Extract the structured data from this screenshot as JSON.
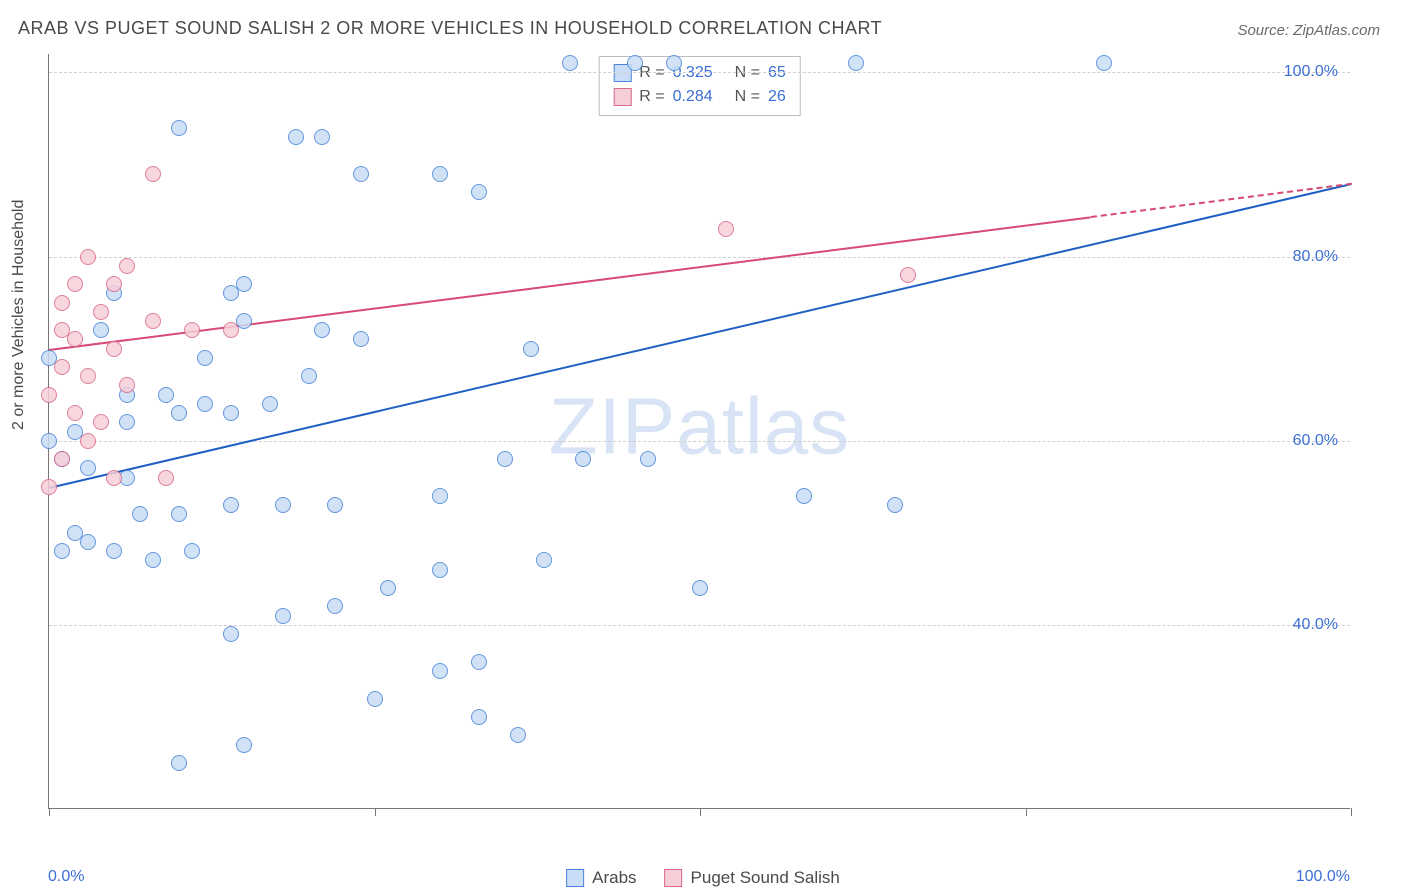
{
  "title": "ARAB VS PUGET SOUND SALISH 2 OR MORE VEHICLES IN HOUSEHOLD CORRELATION CHART",
  "source": "Source: ZipAtlas.com",
  "watermark": {
    "bold": "ZIP",
    "rest": "atlas"
  },
  "ylabel": "2 or more Vehicles in Household",
  "chart": {
    "type": "scatter",
    "xlim": [
      0,
      100
    ],
    "ylim": [
      20,
      102
    ],
    "background_color": "#ffffff",
    "grid_color": "#d0d0d0",
    "yticks": [
      40,
      60,
      80,
      100
    ],
    "ytick_labels": [
      "40.0%",
      "60.0%",
      "80.0%",
      "100.0%"
    ],
    "xticks": [
      0,
      25,
      50,
      75,
      100
    ],
    "x_end_labels": {
      "min": "0.0%",
      "max": "100.0%"
    },
    "marker_radius": 8,
    "marker_border_width": 1.2,
    "series": [
      {
        "name": "Arabs",
        "fill": "#c9ddf6",
        "stroke": "#4a86d8",
        "trend_color": "#1f5fc4",
        "trend": {
          "x1": 0,
          "y1": 55,
          "x2": 100,
          "y2": 88,
          "dashed_from": null
        },
        "stats": {
          "R": "0.325",
          "N": "65"
        },
        "points": [
          [
            40,
            101
          ],
          [
            45,
            101
          ],
          [
            48,
            101
          ],
          [
            62,
            101
          ],
          [
            81,
            101
          ],
          [
            10,
            94
          ],
          [
            19,
            93
          ],
          [
            21,
            93
          ],
          [
            24,
            89
          ],
          [
            30,
            89
          ],
          [
            33,
            87
          ],
          [
            15,
            77
          ],
          [
            14,
            76
          ],
          [
            15,
            73
          ],
          [
            21,
            72
          ],
          [
            24,
            71
          ],
          [
            37,
            70
          ],
          [
            46,
            58
          ],
          [
            41,
            58
          ],
          [
            35,
            58
          ],
          [
            30,
            54
          ],
          [
            22,
            53
          ],
          [
            18,
            53
          ],
          [
            14,
            53
          ],
          [
            10,
            52
          ],
          [
            7,
            52
          ],
          [
            3,
            49
          ],
          [
            1,
            48
          ],
          [
            6,
            65
          ],
          [
            9,
            65
          ],
          [
            12,
            64
          ],
          [
            14,
            63
          ],
          [
            10,
            63
          ],
          [
            6,
            62
          ],
          [
            2,
            61
          ],
          [
            0,
            60
          ],
          [
            1,
            58
          ],
          [
            3,
            57
          ],
          [
            6,
            56
          ],
          [
            2,
            50
          ],
          [
            5,
            48
          ],
          [
            8,
            47
          ],
          [
            11,
            48
          ],
          [
            4,
            72
          ],
          [
            12,
            69
          ],
          [
            20,
            67
          ],
          [
            17,
            64
          ],
          [
            38,
            47
          ],
          [
            30,
            46
          ],
          [
            26,
            44
          ],
          [
            22,
            42
          ],
          [
            18,
            41
          ],
          [
            14,
            39
          ],
          [
            33,
            36
          ],
          [
            30,
            35
          ],
          [
            25,
            32
          ],
          [
            33,
            30
          ],
          [
            36,
            28
          ],
          [
            15,
            27
          ],
          [
            10,
            25
          ],
          [
            50,
            44
          ],
          [
            58,
            54
          ],
          [
            65,
            53
          ],
          [
            5,
            76
          ],
          [
            0,
            69
          ]
        ]
      },
      {
        "name": "Puget Sound Salish",
        "fill": "#f6cfd9",
        "stroke": "#d96a8b",
        "trend_color": "#d64a73",
        "trend": {
          "x1": 0,
          "y1": 70,
          "x2": 100,
          "y2": 88,
          "dashed_from": 80
        },
        "stats": {
          "R": "0.284",
          "N": "26"
        },
        "points": [
          [
            8,
            89
          ],
          [
            3,
            80
          ],
          [
            6,
            79
          ],
          [
            5,
            77
          ],
          [
            2,
            77
          ],
          [
            1,
            75
          ],
          [
            4,
            74
          ],
          [
            8,
            73
          ],
          [
            11,
            72
          ],
          [
            14,
            72
          ],
          [
            2,
            71
          ],
          [
            5,
            70
          ],
          [
            1,
            68
          ],
          [
            3,
            67
          ],
          [
            6,
            66
          ],
          [
            0,
            65
          ],
          [
            2,
            63
          ],
          [
            4,
            62
          ],
          [
            1,
            58
          ],
          [
            5,
            56
          ],
          [
            9,
            56
          ],
          [
            0,
            55
          ],
          [
            52,
            83
          ],
          [
            66,
            78
          ],
          [
            1,
            72
          ],
          [
            3,
            60
          ]
        ]
      }
    ]
  },
  "legend_bottom": [
    {
      "label": "Arabs",
      "fill": "#c9ddf6",
      "stroke": "#4a86d8"
    },
    {
      "label": "Puget Sound Salish",
      "fill": "#f6cfd9",
      "stroke": "#d96a8b"
    }
  ]
}
